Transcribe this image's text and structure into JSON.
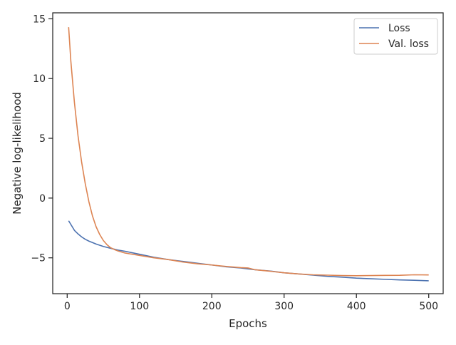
{
  "chart_data": {
    "type": "line",
    "xlabel": "Epochs",
    "ylabel": "Negative log-likelihood",
    "xlim": [
      -20,
      520
    ],
    "ylim": [
      -8,
      15.5
    ],
    "xticks": [
      0,
      100,
      200,
      300,
      400,
      500
    ],
    "yticks": [
      -5,
      0,
      5,
      10,
      15
    ],
    "xtick_labels": [
      "0",
      "100",
      "200",
      "300",
      "400",
      "500"
    ],
    "ytick_labels": [
      "−5",
      "0",
      "5",
      "10",
      "15"
    ],
    "grid": false,
    "legend_position": "top-right",
    "series": [
      {
        "name": "Loss",
        "color": "#4c72b0",
        "x": [
          2,
          5,
          10,
          15,
          20,
          25,
          30,
          40,
          50,
          60,
          70,
          80,
          100,
          120,
          140,
          160,
          180,
          200,
          220,
          240,
          260,
          280,
          300,
          320,
          340,
          360,
          380,
          400,
          420,
          440,
          460,
          480,
          500
        ],
        "y": [
          -1.9,
          -2.2,
          -2.7,
          -3.0,
          -3.25,
          -3.45,
          -3.6,
          -3.85,
          -4.05,
          -4.2,
          -4.35,
          -4.45,
          -4.7,
          -4.95,
          -5.15,
          -5.3,
          -5.45,
          -5.6,
          -5.75,
          -5.85,
          -6.0,
          -6.1,
          -6.25,
          -6.35,
          -6.45,
          -6.55,
          -6.62,
          -6.7,
          -6.75,
          -6.8,
          -6.85,
          -6.88,
          -6.92
        ]
      },
      {
        "name": "Val. loss",
        "color": "#dd8452",
        "x": [
          2,
          5,
          10,
          15,
          20,
          25,
          30,
          35,
          40,
          45,
          50,
          55,
          60,
          65,
          70,
          80,
          100,
          120,
          140,
          160,
          180,
          200,
          220,
          240,
          250,
          260,
          280,
          300,
          320,
          340,
          360,
          380,
          400,
          420,
          440,
          460,
          480,
          500
        ],
        "y": [
          14.3,
          11.5,
          8.0,
          5.2,
          3.0,
          1.2,
          -0.3,
          -1.5,
          -2.4,
          -3.05,
          -3.55,
          -3.9,
          -4.15,
          -4.3,
          -4.42,
          -4.6,
          -4.8,
          -5.0,
          -5.15,
          -5.35,
          -5.5,
          -5.6,
          -5.72,
          -5.82,
          -5.85,
          -6.0,
          -6.12,
          -6.25,
          -6.35,
          -6.42,
          -6.45,
          -6.48,
          -6.5,
          -6.48,
          -6.47,
          -6.46,
          -6.42,
          -6.43
        ]
      }
    ]
  }
}
